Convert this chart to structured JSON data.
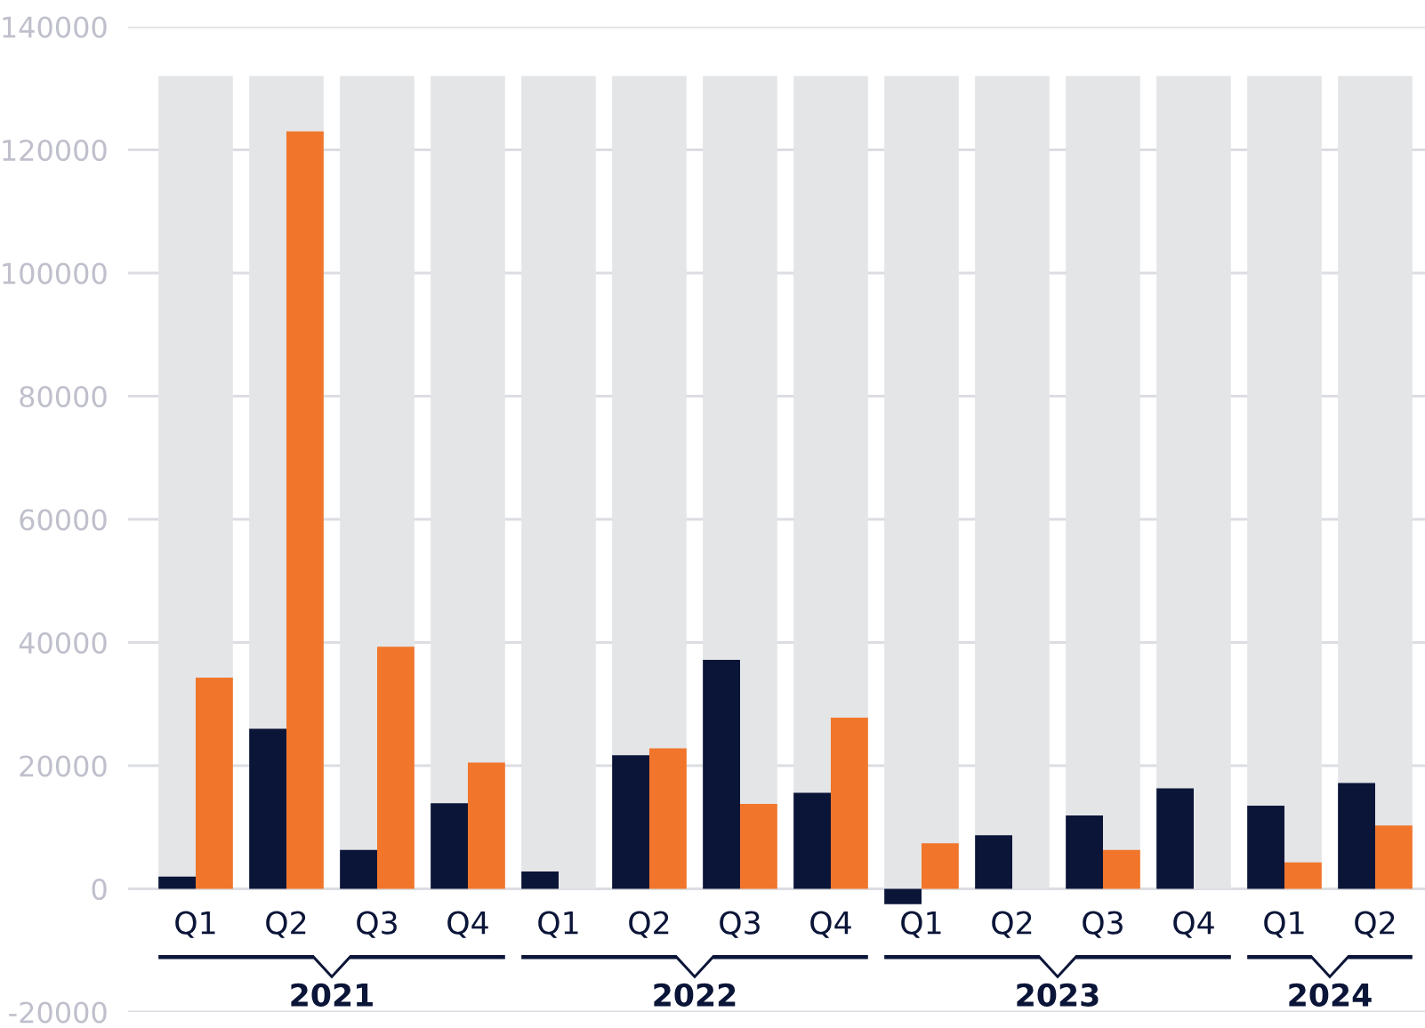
{
  "chart_data": {
    "type": "bar",
    "categories": [
      "Q1",
      "Q2",
      "Q3",
      "Q4",
      "Q1",
      "Q2",
      "Q3",
      "Q4",
      "Q1",
      "Q2",
      "Q3",
      "Q4",
      "Q1",
      "Q2"
    ],
    "series": [
      {
        "color": "#e4e5e7",
        "values": [
          132000,
          132000,
          132000,
          132000,
          132000,
          132000,
          132000,
          132000,
          132000,
          132000,
          132000,
          132000,
          132000,
          132000
        ]
      },
      {
        "color": "#0b1538",
        "values": [
          2000,
          26000,
          6300,
          13900,
          2800,
          21700,
          37200,
          15600,
          -2500,
          8700,
          11900,
          16300,
          13500,
          17200
        ]
      },
      {
        "color": "#f1762b",
        "values": [
          34300,
          123000,
          39300,
          20500,
          null,
          22800,
          13800,
          27800,
          7400,
          null,
          6300,
          null,
          4300,
          10300
        ]
      }
    ],
    "ylim": [
      -20000,
      140000
    ],
    "yticks": [
      -20000,
      0,
      20000,
      40000,
      60000,
      80000,
      100000,
      120000,
      140000
    ],
    "grid": "y",
    "legend": false,
    "annotations": [
      "2021",
      "2022",
      "2023",
      "2024"
    ]
  }
}
